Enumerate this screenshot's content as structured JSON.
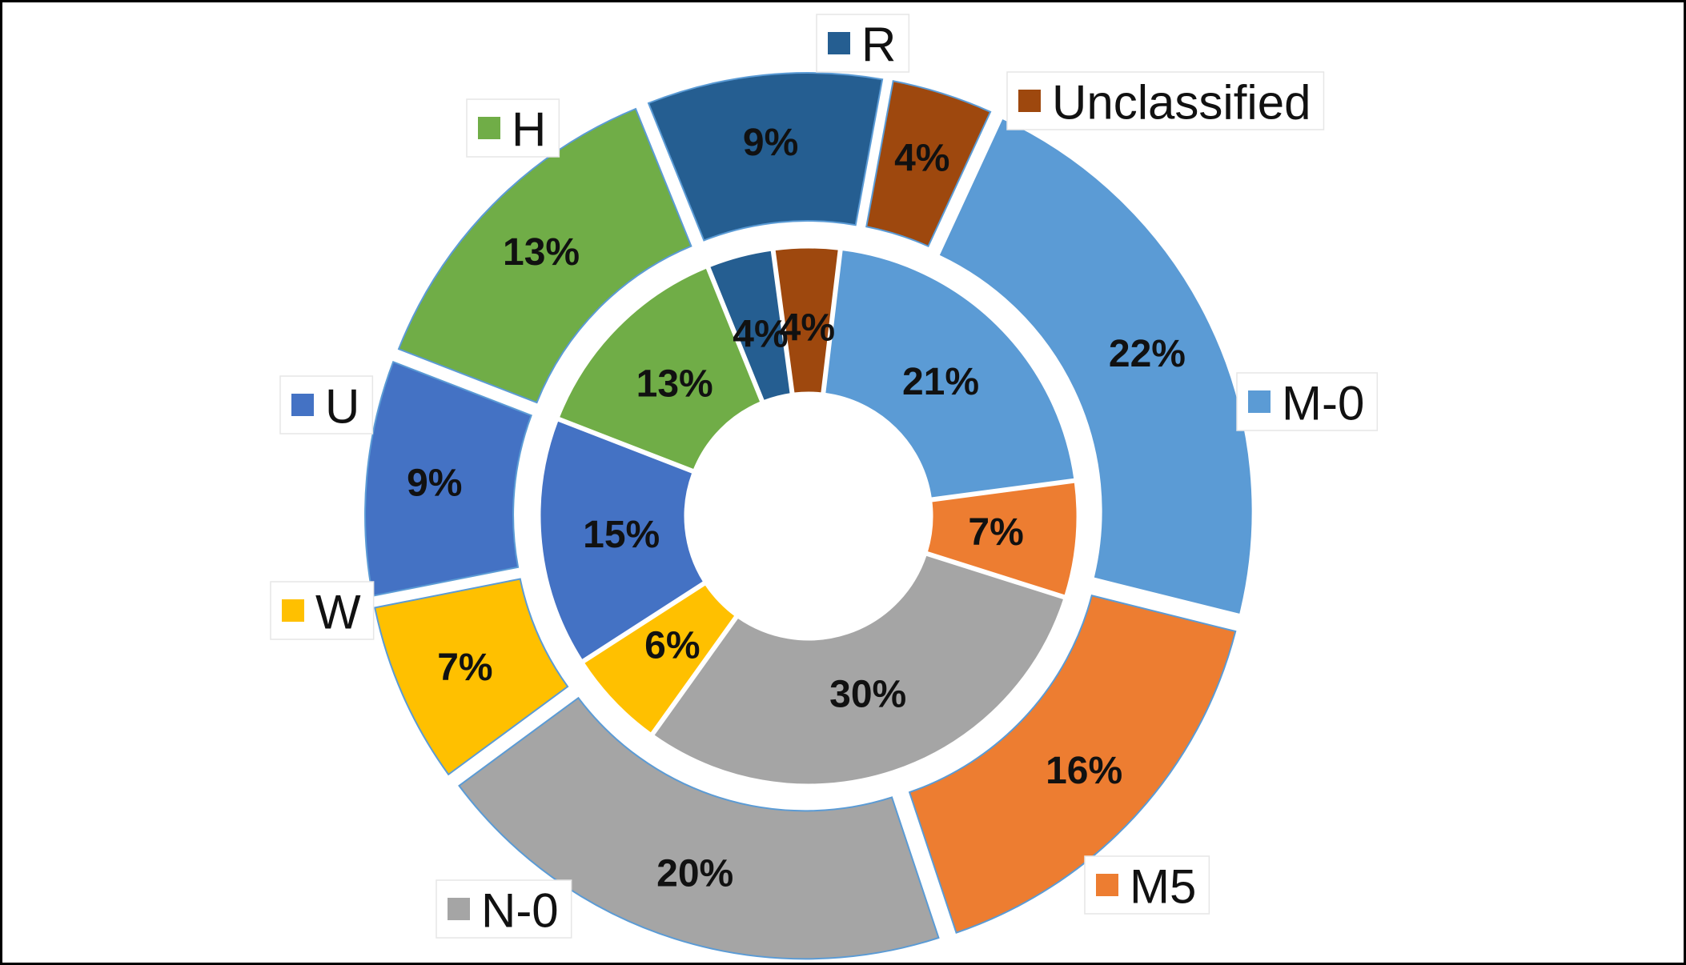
{
  "chart_data": {
    "type": "pie",
    "variant": "nested-doughnut",
    "categories": [
      "R",
      "Unclassified",
      "M-0",
      "M5",
      "N-0",
      "W",
      "U",
      "H"
    ],
    "colors": {
      "R": "#255E91",
      "Unclassified": "#9E480E",
      "M-0": "#5B9BD5",
      "M5": "#ED7D31",
      "N-0": "#A5A5A5",
      "W": "#FFC000",
      "U": "#4472C4",
      "H": "#70AD47"
    },
    "series": [
      {
        "ring": "outer",
        "values": [
          9,
          4,
          22,
          16,
          20,
          7,
          9,
          13
        ]
      },
      {
        "ring": "inner",
        "values": [
          4,
          4,
          21,
          7,
          30,
          6,
          15,
          13
        ]
      }
    ],
    "value_labels": {
      "outer": [
        "9%",
        "4%",
        "22%",
        "16%",
        "20%",
        "7%",
        "9%",
        "13%"
      ],
      "inner": [
        "4%",
        "4%",
        "21%",
        "7%",
        "30%",
        "6%",
        "15%",
        "13%"
      ]
    },
    "legend": [
      {
        "label": "R",
        "color": "#255E91"
      },
      {
        "label": "Unclassified",
        "color": "#9E480E"
      },
      {
        "label": "M-0",
        "color": "#5B9BD5"
      },
      {
        "label": "M5",
        "color": "#ED7D31"
      },
      {
        "label": "N-0",
        "color": "#A5A5A5"
      },
      {
        "label": "W",
        "color": "#FFC000"
      },
      {
        "label": "U",
        "color": "#4472C4"
      },
      {
        "label": "H",
        "color": "#70AD47"
      }
    ],
    "legend_placement": "callouts around the rings",
    "title": "",
    "grid": false
  }
}
